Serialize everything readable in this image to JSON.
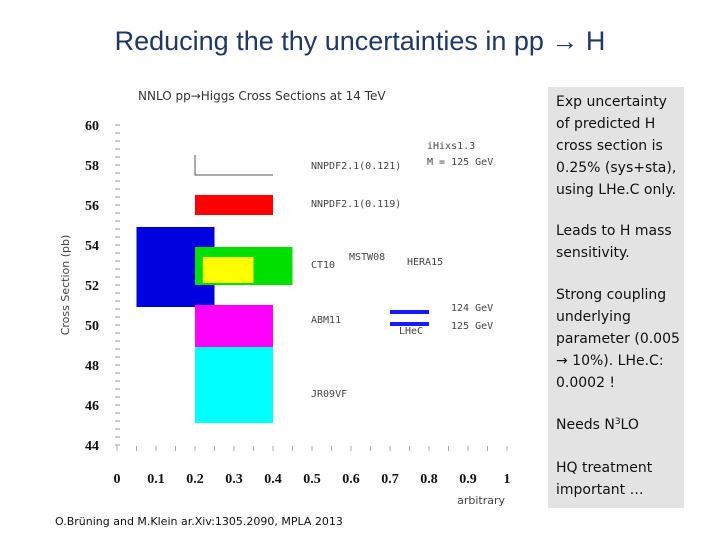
{
  "slide": {
    "title": "Reducing the thy uncertainties in pp → H",
    "citation": "O.Brüning and M.Klein ar.Xiv:1305.2090, MPLA 2013"
  },
  "side_notes": {
    "note1": "Exp uncertainty of predicted H cross section is 0.25% (sys+sta), using LHe.C only.",
    "note2": "Leads to H mass sensitivity.",
    "note3": "Strong coupling underlying parameter (0.005 → 10%). LHe.C: 0.0002 !",
    "note4_prefix": "Needs N",
    "note4_sup": "3",
    "note4_suffix": "LO",
    "note5": "HQ treatment important …"
  },
  "colors": {
    "title": "#1f3864",
    "side_bg": "#e3e3e3",
    "lhec_line": "#1a1aff"
  },
  "chart_data": {
    "type": "bar",
    "title": "NNLO pp→Higgs Cross Sections at 14 TeV",
    "xlabel": "arbitrary",
    "ylabel": "Cross Section (pb)",
    "xlim": [
      0,
      1
    ],
    "ylim": [
      44,
      60
    ],
    "x_ticks": [
      "0",
      "0.1",
      "0.2",
      "0.3",
      "0.4",
      "0.5",
      "0.6",
      "0.7",
      "0.8",
      "0.9",
      "1"
    ],
    "y_ticks": [
      "44",
      "46",
      "48",
      "50",
      "52",
      "54",
      "56",
      "58",
      "60"
    ],
    "info_text": [
      "iHixs1.3",
      "M = 125 GeV"
    ],
    "boxes": [
      {
        "name": "NNPDF2.1(0.121)",
        "x0": 0.2,
        "x1": 0.4,
        "y0": 57.5,
        "y1": 58.5,
        "color": "#ffffff",
        "outline": "#555555"
      },
      {
        "name": "NNPDF2.1(0.119)",
        "x0": 0.2,
        "x1": 0.4,
        "y0": 55.5,
        "y1": 56.5,
        "color": "#ff0000"
      },
      {
        "name": "MSTW08",
        "x0": 0.05,
        "x1": 0.25,
        "y0": 50.9,
        "y1": 54.9,
        "color": "#0000e0"
      },
      {
        "name": "CT10",
        "x0": 0.2,
        "x1": 0.45,
        "y0": 52.0,
        "y1": 53.9,
        "color": "#00e000"
      },
      {
        "name": "HERA15",
        "x0": 0.22,
        "x1": 0.35,
        "y0": 52.1,
        "y1": 53.4,
        "color": "#ffff00"
      },
      {
        "name": "ABM11",
        "x0": 0.2,
        "x1": 0.4,
        "y0": 48.9,
        "y1": 51.0,
        "color": "#ff00ff"
      },
      {
        "name": "JR09VF",
        "x0": 0.2,
        "x1": 0.4,
        "y0": 45.1,
        "y1": 48.9,
        "color": "#00ffff"
      }
    ],
    "box_labels": [
      "NNPDF2.1(0.121)",
      "NNPDF2.1(0.119)",
      "CT10",
      "MSTW08",
      "HERA15",
      "ABM11",
      "JR09VF"
    ],
    "lhec_lines": [
      {
        "label": "124 GeV",
        "x0": 0.7,
        "x1": 0.8,
        "y": 50.65
      },
      {
        "label": "125 GeV",
        "x0": 0.7,
        "x1": 0.8,
        "y": 50.05
      }
    ],
    "lhec_label": "LHeC"
  }
}
